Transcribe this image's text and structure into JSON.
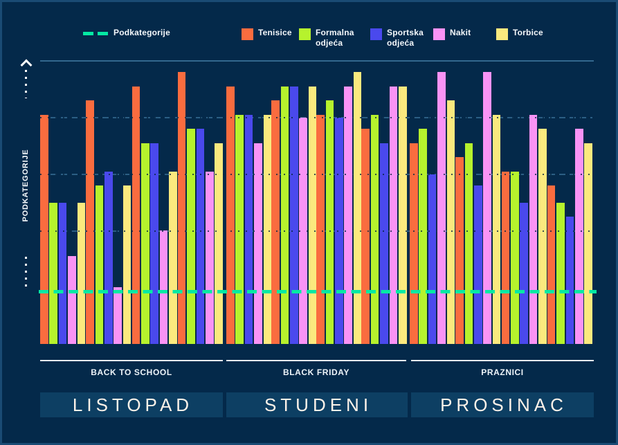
{
  "colors": {
    "background": "#04294a",
    "frame": "#1a4b74",
    "band": "#0d3f63",
    "gridline": "#2b5e84",
    "reference_teal": "#05e9a3",
    "text": "#f5f8fb"
  },
  "chart_data": {
    "type": "grouped_bar",
    "title": "",
    "y_axis_label": "PODKATEGORIJE",
    "y_tick_labels_visible": false,
    "ymin": 0,
    "ymax": 100,
    "gridlines_pct": [
      40,
      60,
      80
    ],
    "groups": [
      {
        "campaign": "BACK TO SCHOOL",
        "month": "LISTOPAD",
        "clusters": 4
      },
      {
        "campaign": "BLACK FRIDAY",
        "month": "STUDENI",
        "clusters": 4
      },
      {
        "campaign": "PRAZNICI",
        "month": "PROSINAC",
        "clusters": 4
      }
    ],
    "series": [
      {
        "name": "Tenisice",
        "label_lines": [
          "Tenisice"
        ],
        "color": "#fa6c3f",
        "values": [
          81,
          86,
          91,
          96,
          91,
          86,
          81,
          76,
          71,
          66,
          61,
          56
        ]
      },
      {
        "name": "Formalna odjeća",
        "label_lines": [
          "Formalna",
          "odjeća"
        ],
        "color": "#b6f22d",
        "values": [
          50,
          56,
          71,
          76,
          81,
          91,
          86,
          81,
          76,
          71,
          61,
          50
        ]
      },
      {
        "name": "Sportska odjeća",
        "label_lines": [
          "Sportska",
          "odjeća"
        ],
        "color": "#4a49ed",
        "values": [
          50,
          61,
          71,
          76,
          81,
          91,
          80,
          71,
          60,
          56,
          50,
          45
        ]
      },
      {
        "name": "Nakit",
        "label_lines": [
          "Nakit"
        ],
        "color": "#f993f5",
        "values": [
          31,
          20,
          40,
          61,
          71,
          80,
          91,
          91,
          96,
          96,
          81,
          76
        ]
      },
      {
        "name": "Torbice",
        "label_lines": [
          "Torbice"
        ],
        "color": "#fbe97e",
        "values": [
          50,
          56,
          61,
          71,
          81,
          91,
          96,
          91,
          86,
          81,
          76,
          71
        ]
      }
    ],
    "reference_line": {
      "label": "Podkategorije",
      "value_pct": 18.5,
      "style": "dashed",
      "color": "#05e9a3"
    }
  }
}
